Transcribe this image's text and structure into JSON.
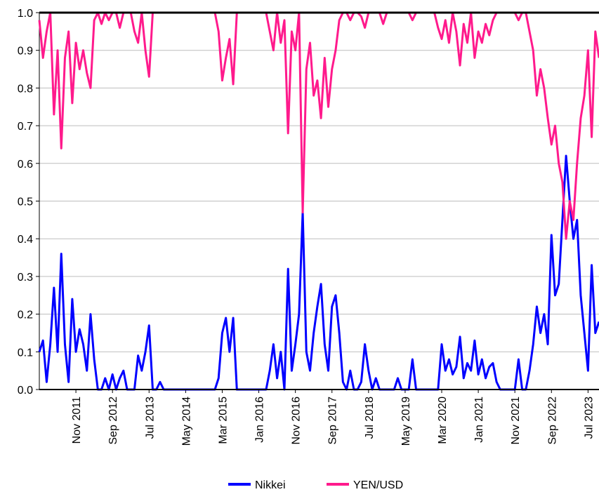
{
  "chart_data": {
    "type": "line",
    "x": [
      "2011-01",
      "2011-02",
      "2011-03",
      "2011-04",
      "2011-05",
      "2011-06",
      "2011-07",
      "2011-08",
      "2011-09",
      "2011-10",
      "2011-11",
      "2011-12",
      "2012-01",
      "2012-02",
      "2012-03",
      "2012-04",
      "2012-05",
      "2012-06",
      "2012-07",
      "2012-08",
      "2012-09",
      "2012-10",
      "2012-11",
      "2012-12",
      "2013-01",
      "2013-02",
      "2013-03",
      "2013-04",
      "2013-05",
      "2013-06",
      "2013-07",
      "2013-08",
      "2013-09",
      "2013-10",
      "2013-11",
      "2013-12",
      "2014-01",
      "2014-02",
      "2014-03",
      "2014-04",
      "2014-05",
      "2014-06",
      "2014-07",
      "2014-08",
      "2014-09",
      "2014-10",
      "2014-11",
      "2014-12",
      "2015-01",
      "2015-02",
      "2015-03",
      "2015-04",
      "2015-05",
      "2015-06",
      "2015-07",
      "2015-08",
      "2015-09",
      "2015-10",
      "2015-11",
      "2015-12",
      "2016-01",
      "2016-02",
      "2016-03",
      "2016-04",
      "2016-05",
      "2016-06",
      "2016-07",
      "2016-08",
      "2016-09",
      "2016-10",
      "2016-11",
      "2016-12",
      "2017-01",
      "2017-02",
      "2017-03",
      "2017-04",
      "2017-05",
      "2017-06",
      "2017-07",
      "2017-08",
      "2017-09",
      "2017-10",
      "2017-11",
      "2017-12",
      "2018-01",
      "2018-02",
      "2018-03",
      "2018-04",
      "2018-05",
      "2018-06",
      "2018-07",
      "2018-08",
      "2018-09",
      "2018-10",
      "2018-11",
      "2018-12",
      "2019-01",
      "2019-02",
      "2019-03",
      "2019-04",
      "2019-05",
      "2019-06",
      "2019-07",
      "2019-08",
      "2019-09",
      "2019-10",
      "2019-11",
      "2019-12",
      "2020-01",
      "2020-02",
      "2020-03",
      "2020-04",
      "2020-05",
      "2020-06",
      "2020-07",
      "2020-08",
      "2020-09",
      "2020-10",
      "2020-11",
      "2020-12",
      "2021-01",
      "2021-02",
      "2021-03",
      "2021-04",
      "2021-05",
      "2021-06",
      "2021-07",
      "2021-08",
      "2021-09",
      "2021-10",
      "2021-11",
      "2021-12",
      "2022-01",
      "2022-02",
      "2022-03",
      "2022-04",
      "2022-05",
      "2022-06",
      "2022-07",
      "2022-08",
      "2022-09",
      "2022-10",
      "2022-11",
      "2022-12",
      "2023-01",
      "2023-02",
      "2023-03",
      "2023-04",
      "2023-05",
      "2023-06",
      "2023-07",
      "2023-08",
      "2023-09",
      "2023-10"
    ],
    "series": [
      {
        "name": "Nikkei",
        "color": "#0000ff",
        "values": [
          0.1,
          0.13,
          0.02,
          0.12,
          0.27,
          0.1,
          0.36,
          0.12,
          0.02,
          0.24,
          0.1,
          0.16,
          0.12,
          0.05,
          0.2,
          0.08,
          0,
          0,
          0.03,
          0,
          0.04,
          0,
          0.03,
          0.05,
          0,
          0,
          0,
          0.09,
          0.05,
          0.1,
          0.17,
          0,
          0,
          0.02,
          0,
          0,
          0,
          0,
          0,
          0,
          0,
          0,
          0,
          0,
          0,
          0,
          0,
          0,
          0,
          0.03,
          0.15,
          0.19,
          0.1,
          0.19,
          0,
          0,
          0,
          0,
          0,
          0,
          0,
          0,
          0,
          0.05,
          0.12,
          0.03,
          0.1,
          0,
          0.32,
          0.05,
          0.12,
          0.2,
          0.47,
          0.1,
          0.05,
          0.15,
          0.22,
          0.28,
          0.12,
          0.05,
          0.22,
          0.25,
          0.15,
          0.02,
          0,
          0.05,
          0,
          0,
          0.02,
          0.12,
          0.05,
          0,
          0.03,
          0,
          0,
          0,
          0,
          0,
          0.03,
          0,
          0,
          0,
          0.08,
          0,
          0,
          0,
          0,
          0,
          0,
          0,
          0.12,
          0.05,
          0.08,
          0.04,
          0.06,
          0.14,
          0.03,
          0.07,
          0.05,
          0.13,
          0.04,
          0.08,
          0.03,
          0.06,
          0.07,
          0.02,
          0,
          0,
          0,
          0,
          0,
          0.08,
          0,
          0,
          0.05,
          0.12,
          0.22,
          0.15,
          0.2,
          0.12,
          0.41,
          0.25,
          0.28,
          0.45,
          0.62,
          0.5,
          0.4,
          0.45,
          0.25,
          0.15,
          0.05,
          0.33,
          0.15,
          0.18
        ]
      },
      {
        "name": "YEN/USD",
        "color": "#ff1a8c",
        "values": [
          0.98,
          0.88,
          0.95,
          1,
          0.73,
          0.9,
          0.64,
          0.88,
          0.95,
          0.76,
          0.92,
          0.85,
          0.9,
          0.84,
          0.8,
          0.98,
          1,
          0.97,
          1,
          0.98,
          1,
          1,
          0.96,
          1,
          1,
          1,
          0.95,
          0.92,
          1,
          0.9,
          0.83,
          1,
          1,
          1,
          1,
          1,
          1,
          1,
          1,
          1,
          1,
          1,
          1,
          1,
          1,
          1,
          1,
          1,
          1,
          0.95,
          0.82,
          0.88,
          0.93,
          0.81,
          1,
          1,
          1,
          1,
          1,
          1,
          1,
          1,
          1,
          0.95,
          0.9,
          1,
          0.92,
          0.98,
          0.68,
          0.95,
          0.9,
          1,
          0.47,
          0.85,
          0.92,
          0.78,
          0.82,
          0.72,
          0.88,
          0.75,
          0.85,
          0.9,
          0.98,
          1,
          1,
          0.98,
          1,
          1,
          0.99,
          0.96,
          1,
          1,
          1,
          1,
          0.97,
          1,
          1,
          1,
          1,
          1,
          1,
          1,
          0.98,
          1,
          1,
          1,
          1,
          1,
          1,
          0.96,
          0.93,
          0.98,
          0.92,
          1,
          0.95,
          0.86,
          0.97,
          0.92,
          1,
          0.88,
          0.95,
          0.92,
          0.97,
          0.94,
          0.98,
          1,
          1,
          1,
          1,
          1,
          1,
          0.98,
          1,
          1,
          0.95,
          0.9,
          0.78,
          0.85,
          0.8,
          0.72,
          0.65,
          0.7,
          0.6,
          0.55,
          0.4,
          0.5,
          0.45,
          0.6,
          0.72,
          0.78,
          0.9,
          0.67,
          0.95,
          0.88
        ]
      }
    ],
    "xlim": [
      "2011-01",
      "2023-10"
    ],
    "xticks": [
      {
        "value": "2011-11",
        "label": "Nov 2011"
      },
      {
        "value": "2012-09",
        "label": "Sep 2012"
      },
      {
        "value": "2013-07",
        "label": "Jul 2013"
      },
      {
        "value": "2014-05",
        "label": "May 2014"
      },
      {
        "value": "2015-03",
        "label": "Mar 2015"
      },
      {
        "value": "2016-01",
        "label": "Jan 2016"
      },
      {
        "value": "2016-11",
        "label": "Nov 2016"
      },
      {
        "value": "2017-09",
        "label": "Sep 2017"
      },
      {
        "value": "2018-07",
        "label": "Jul 2018"
      },
      {
        "value": "2019-05",
        "label": "May 2019"
      },
      {
        "value": "2020-03",
        "label": "Mar 2020"
      },
      {
        "value": "2021-01",
        "label": "Jan 2021"
      },
      {
        "value": "2021-11",
        "label": "Nov 2021"
      },
      {
        "value": "2022-09",
        "label": "Sep 2022"
      },
      {
        "value": "2023-07",
        "label": "Jul 2023"
      }
    ],
    "ylim": [
      0,
      1
    ],
    "yticks": [
      {
        "value": 0,
        "label": "0.0"
      },
      0.1,
      0.2,
      0.3,
      0.4,
      0.5,
      0.6,
      0.7,
      0.8,
      0.9,
      {
        "value": 1,
        "label": "1.0"
      }
    ],
    "grid": true
  }
}
